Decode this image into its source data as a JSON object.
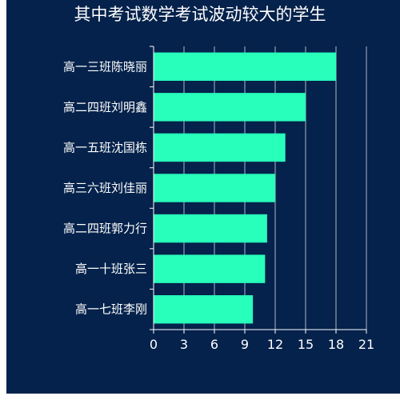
{
  "title": "其中考试数学考试波动较大的学生",
  "chart_data": {
    "type": "bar",
    "orientation": "horizontal",
    "title": "其中考试数学考试波动较大的学生",
    "categories": [
      "高一三班陈晓丽",
      "高二四班刘明鑫",
      "高一五班沈国栋",
      "高三六班刘佳丽",
      "高二四班郭力行",
      "高一十班张三",
      "高一七班李刚"
    ],
    "values": [
      18,
      15,
      13,
      12,
      11.2,
      11,
      9.8
    ],
    "xlim": [
      0,
      21
    ],
    "xticks": [
      0,
      3,
      6,
      9,
      12,
      15,
      18,
      21
    ],
    "grid": true,
    "colors": {
      "background": "#04224b",
      "bar": "#28ffbb",
      "text": "#ffffff",
      "grid": "#ffffff"
    }
  }
}
